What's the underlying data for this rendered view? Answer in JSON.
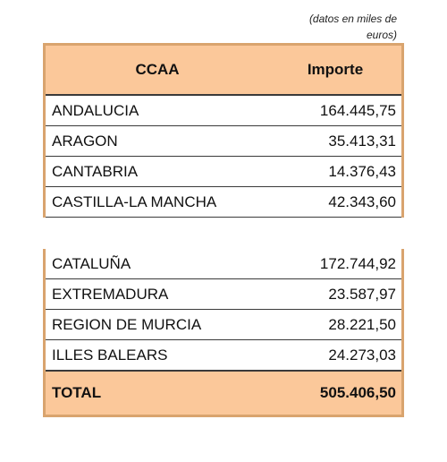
{
  "note": "(datos en miles de euros)",
  "table": {
    "header": [
      "CCAA",
      "Importe"
    ],
    "groups": [
      [
        [
          "ANDALUCIA",
          "164.445,75"
        ],
        [
          "ARAGON",
          "35.413,31"
        ],
        [
          "CANTABRIA",
          "14.376,43"
        ],
        [
          "CASTILLA-LA MANCHA",
          "42.343,60"
        ]
      ],
      [
        [
          "CATALUÑA",
          "172.744,92"
        ],
        [
          "EXTREMADURA",
          "23.587,97"
        ],
        [
          "REGION DE MURCIA",
          "28.221,50"
        ],
        [
          "ILLES BALEARS",
          "24.273,03"
        ]
      ]
    ],
    "total": [
      "TOTAL",
      "505.406,50"
    ]
  }
}
